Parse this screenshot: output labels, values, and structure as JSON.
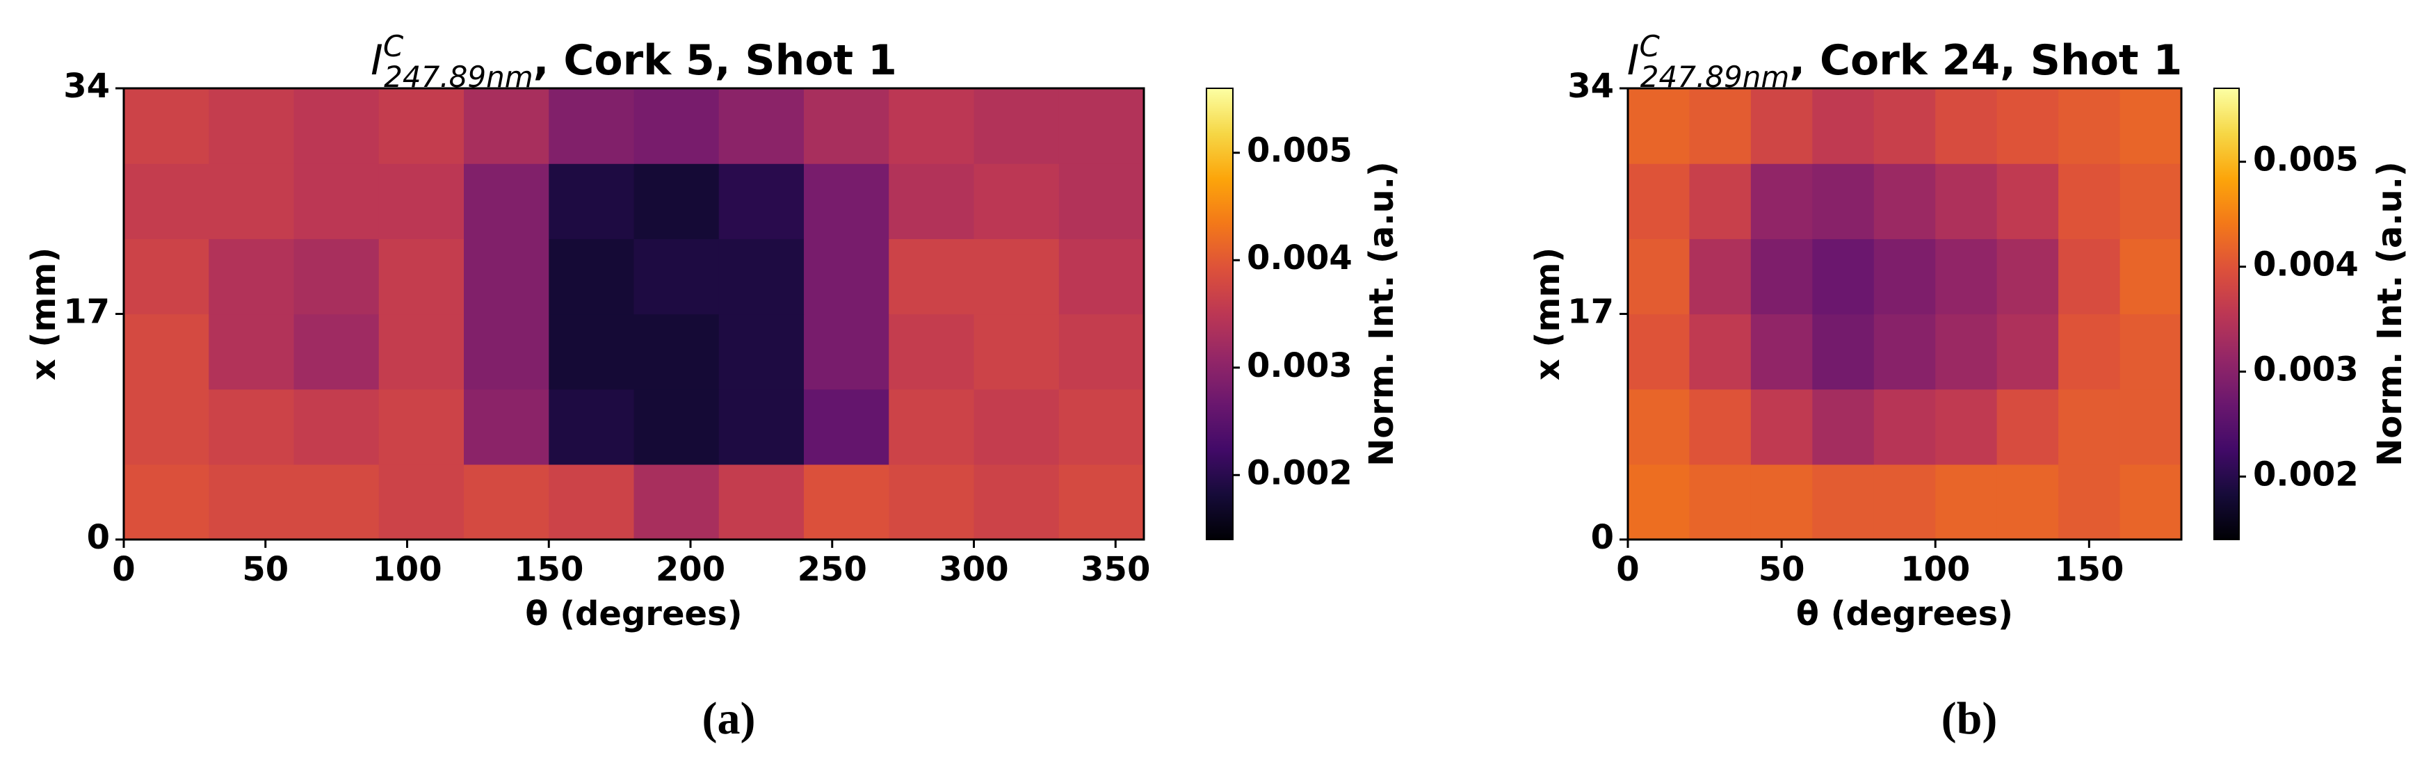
{
  "chart_data": [
    {
      "type": "heatmap",
      "title": {
        "symbol": "I",
        "superscript": "C",
        "subscript": "247.89nm",
        "text": ", Cork 5, Shot 1"
      },
      "xlabel": "θ (degrees)",
      "ylabel": "x (mm)",
      "colorbar_label": "Norm. Int. (a.u.)",
      "panel_label": "(a)",
      "colormap": "inferno",
      "xlim": [
        0,
        360
      ],
      "xticks": [
        0,
        50,
        100,
        150,
        200,
        250,
        300,
        350
      ],
      "ylim": [
        0,
        34
      ],
      "yticks": [
        0,
        17,
        34
      ],
      "clim": [
        0.0014,
        0.0056
      ],
      "cticks": [
        0.002,
        0.003,
        0.004,
        0.005
      ],
      "z": [
        [
          0.0039,
          0.0038,
          0.0038,
          0.0037,
          0.0038,
          0.0037,
          0.0033,
          0.0036,
          0.0039,
          0.0038,
          0.0037,
          0.0038
        ],
        [
          0.0038,
          0.0037,
          0.0036,
          0.0037,
          0.003,
          0.0019,
          0.0018,
          0.0019,
          0.0026,
          0.0037,
          0.0036,
          0.0037
        ],
        [
          0.0038,
          0.0034,
          0.0032,
          0.0036,
          0.0029,
          0.0018,
          0.0018,
          0.0019,
          0.0028,
          0.0036,
          0.0037,
          0.0036
        ],
        [
          0.0037,
          0.0034,
          0.0033,
          0.0036,
          0.0029,
          0.0018,
          0.0019,
          0.0019,
          0.0028,
          0.0037,
          0.0037,
          0.0035
        ],
        [
          0.0036,
          0.0036,
          0.0035,
          0.0035,
          0.0029,
          0.0019,
          0.0018,
          0.002,
          0.0028,
          0.0034,
          0.0035,
          0.0034
        ],
        [
          0.0037,
          0.0036,
          0.0035,
          0.0036,
          0.0033,
          0.0029,
          0.0028,
          0.003,
          0.0033,
          0.0035,
          0.0034,
          0.0034
        ]
      ]
    },
    {
      "type": "heatmap",
      "title": {
        "symbol": "I",
        "superscript": "C",
        "subscript": "247.89nm",
        "text": ", Cork 24, Shot 1"
      },
      "xlabel": "θ (degrees)",
      "ylabel": "x (mm)",
      "colorbar_label": "Norm. Int. (a.u.)",
      "panel_label": "(b)",
      "colormap": "inferno",
      "xlim": [
        0,
        180
      ],
      "xticks": [
        0,
        50,
        100,
        150
      ],
      "ylim": [
        0,
        34
      ],
      "yticks": [
        0,
        17,
        34
      ],
      "clim": [
        0.0014,
        0.0057
      ],
      "cticks": [
        0.002,
        0.003,
        0.004,
        0.005
      ],
      "z": [
        [
          0.0043,
          0.0042,
          0.0042,
          0.0041,
          0.0041,
          0.0042,
          0.0042,
          0.0041,
          0.0042
        ],
        [
          0.0042,
          0.004,
          0.0036,
          0.0033,
          0.0035,
          0.0036,
          0.0039,
          0.0041,
          0.0041
        ],
        [
          0.004,
          0.0036,
          0.0031,
          0.0028,
          0.003,
          0.0032,
          0.0034,
          0.004,
          0.0041
        ],
        [
          0.0041,
          0.0034,
          0.0029,
          0.0027,
          0.0029,
          0.0031,
          0.0033,
          0.0039,
          0.0042
        ],
        [
          0.004,
          0.0037,
          0.0031,
          0.003,
          0.0032,
          0.0034,
          0.0036,
          0.004,
          0.0041
        ],
        [
          0.0042,
          0.0041,
          0.0038,
          0.0036,
          0.0037,
          0.0039,
          0.004,
          0.0041,
          0.0042
        ]
      ]
    }
  ]
}
